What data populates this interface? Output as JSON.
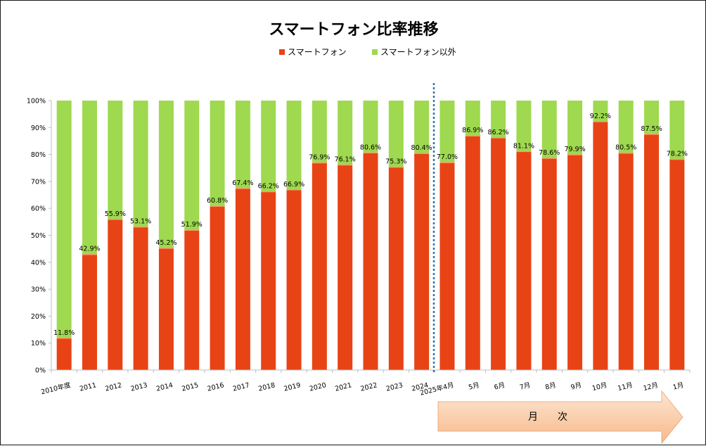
{
  "chart_data": {
    "type": "bar",
    "stacked": true,
    "title": "スマートフォン比率推移",
    "categories": [
      "2010年度",
      "2011",
      "2012",
      "2013",
      "2014",
      "2015",
      "2016",
      "2017",
      "2018",
      "2019",
      "2020",
      "2021",
      "2022",
      "2023",
      "2024",
      "2025年4月",
      "5月",
      "6月",
      "7月",
      "8月",
      "9月",
      "10月",
      "11月",
      "12月",
      "1月"
    ],
    "series": [
      {
        "name": "スマートフォン",
        "color": "#E84315",
        "values": [
          11.8,
          42.9,
          55.9,
          53.1,
          45.2,
          51.9,
          60.8,
          67.4,
          66.2,
          66.9,
          76.9,
          76.1,
          80.6,
          75.3,
          80.4,
          77.0,
          86.9,
          86.2,
          81.1,
          78.6,
          79.9,
          92.2,
          80.5,
          87.5,
          78.2
        ]
      },
      {
        "name": "スマートフォン以外",
        "color": "#9ED94F",
        "values": [
          88.2,
          57.1,
          44.1,
          46.9,
          54.8,
          48.1,
          39.2,
          32.6,
          33.8,
          33.1,
          23.1,
          23.9,
          19.4,
          24.7,
          19.6,
          23.0,
          13.1,
          13.8,
          18.9,
          21.4,
          20.1,
          7.8,
          19.5,
          12.5,
          21.8
        ]
      }
    ],
    "data_labels": [
      "11.8%",
      "42.9%",
      "55.9%",
      "53.1%",
      "45.2%",
      "51.9%",
      "60.8%",
      "67.4%",
      "66.2%",
      "66.9%",
      "76.9%",
      "76.1%",
      "80.6%",
      "75.3%",
      "80.4%",
      "77.0%",
      "86.9%",
      "86.2%",
      "81.1%",
      "78.6%",
      "79.9%",
      "92.2%",
      "80.5%",
      "87.5%",
      "78.2%"
    ],
    "ylim": [
      0,
      100
    ],
    "yticks": [
      "0%",
      "10%",
      "20%",
      "30%",
      "40%",
      "50%",
      "60%",
      "70%",
      "80%",
      "90%",
      "100%"
    ],
    "legend_position": "top",
    "divider_after_category": "2024",
    "divider_style": "dotted",
    "divider_color": "#2E75B6",
    "annotation_arrow": {
      "label": "月　　次",
      "color": "#F8C9A2",
      "spans": "2025年4月 – 1月"
    }
  }
}
